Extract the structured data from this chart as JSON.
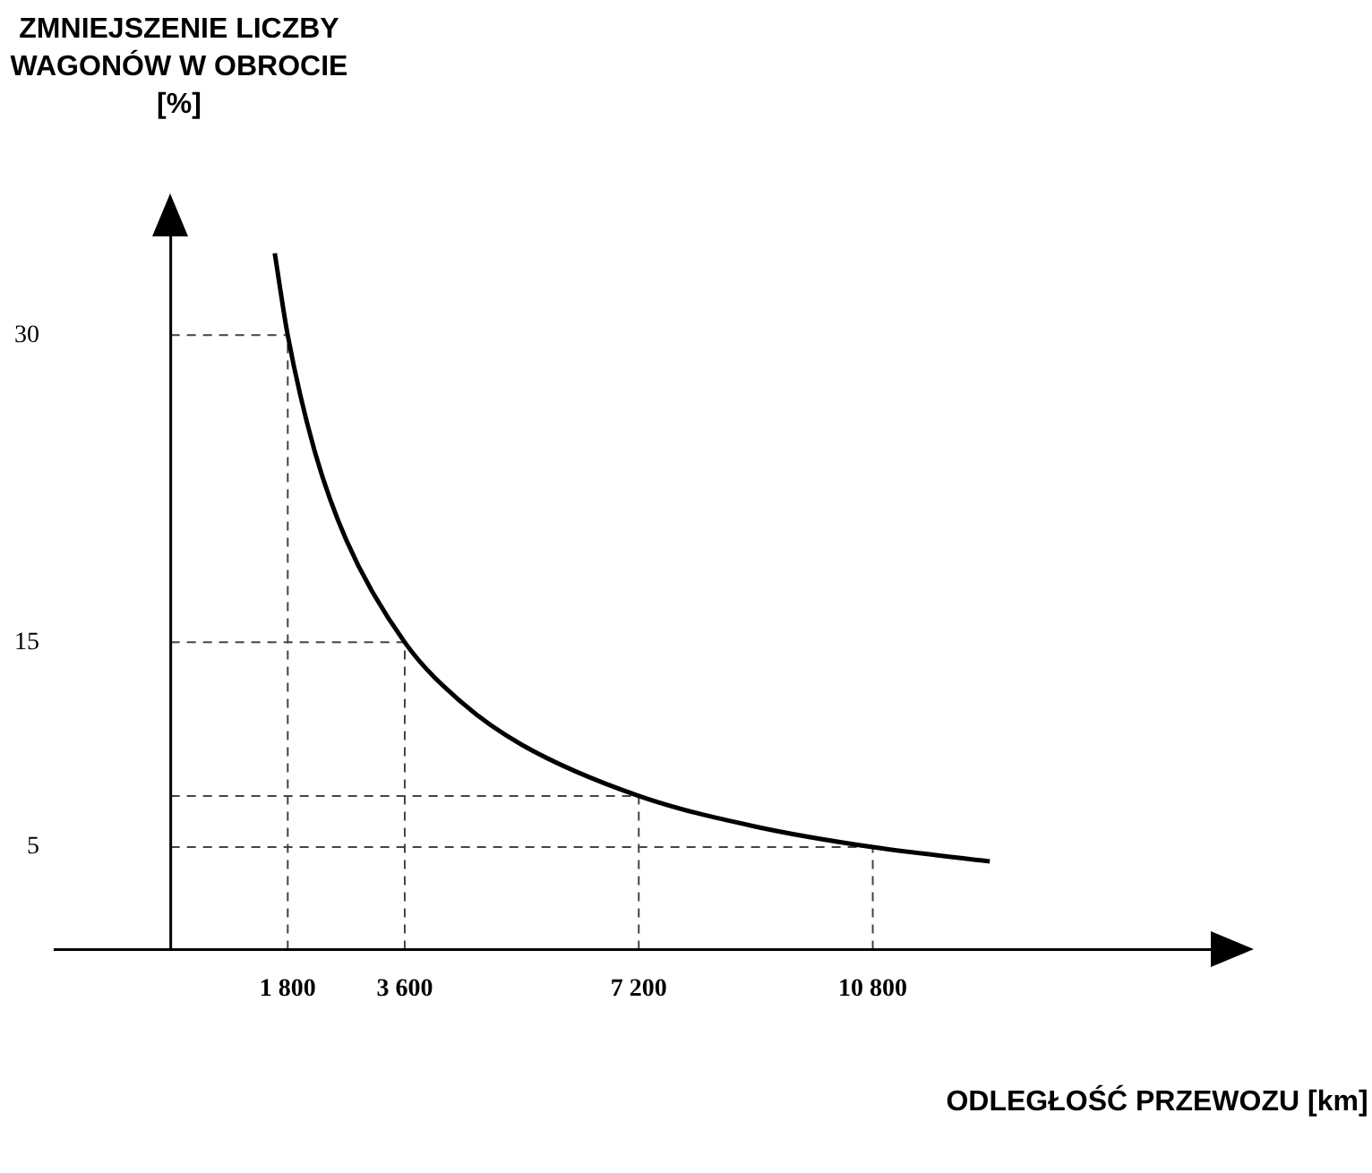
{
  "chart_data": {
    "type": "line",
    "xlabel": "ODLEGŁOŚĆ PRZEWOZU [km]",
    "ylabel": "ZMNIEJSZENIE LICZBY WAGONÓW W OBROCIE [%]",
    "x": [
      1600,
      1800,
      2200,
      2700,
      3600,
      4500,
      5400,
      7200,
      9000,
      10800,
      12600
    ],
    "series": [
      {
        "color": "#000000",
        "values": [
          34,
          30,
          24.5,
          20,
          15,
          12,
          10,
          7.5,
          6,
          5,
          4.3
        ]
      }
    ],
    "xlim": [
      -1800,
      16000
    ],
    "ylim": [
      0,
      35
    ],
    "xticks": [
      {
        "value": 1800,
        "label": "1 800"
      },
      {
        "value": 3600,
        "label": "3 600"
      },
      {
        "value": 7200,
        "label": "7 200"
      },
      {
        "value": 10800,
        "label": "10 800"
      }
    ],
    "yticks": [
      5,
      15,
      30
    ],
    "ref_lines": [
      {
        "axis": "x",
        "value": 1800,
        "line_style": "dashed"
      },
      {
        "axis": "x",
        "value": 3600,
        "line_style": "dashed"
      },
      {
        "axis": "x",
        "value": 7200,
        "line_style": "dashed"
      },
      {
        "axis": "x",
        "value": 10800,
        "line_style": "dashed"
      },
      {
        "axis": "y",
        "value": 30,
        "line_style": "dashed"
      },
      {
        "axis": "y",
        "value": 15,
        "line_style": "dashed"
      },
      {
        "axis": "y",
        "value": 7.5,
        "line_style": "dashed"
      },
      {
        "axis": "y",
        "value": 5,
        "line_style": "dashed"
      }
    ],
    "grid": false,
    "legend": false,
    "marker": "none",
    "line_style": "solid"
  }
}
